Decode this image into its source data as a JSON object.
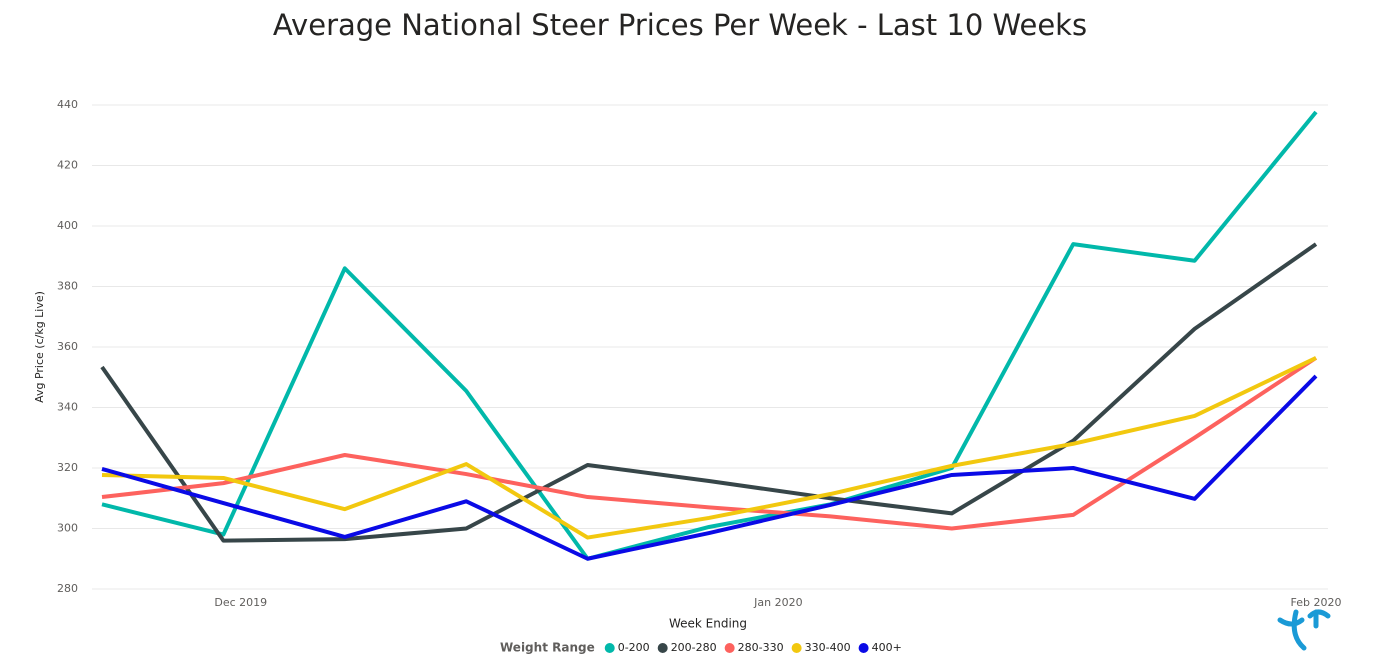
{
  "chart_data": {
    "type": "line",
    "title": "Average National Steer Prices Per Week - Last 10 Weeks",
    "x_label": "Week Ending",
    "y_label": "Avg Price (c/kg Live)",
    "legend_title": "Weight Range",
    "x": [
      "2019-11-23",
      "2019-11-30",
      "2019-12-07",
      "2019-12-14",
      "2019-12-21",
      "2019-12-28",
      "2020-01-04",
      "2020-01-11",
      "2020-01-18",
      "2020-01-25",
      "2020-02-01"
    ],
    "xlim": [
      "2019-11-23",
      "2020-02-01"
    ],
    "xticks": [
      {
        "value": "2019-12-01",
        "label": "Dec 2019"
      },
      {
        "value": "2020-01-01",
        "label": "Jan 2020"
      },
      {
        "value": "2020-02-01",
        "label": "Feb 2020"
      }
    ],
    "ylim": [
      280,
      440
    ],
    "yticks": [
      280,
      300,
      320,
      340,
      360,
      380,
      400,
      420,
      440
    ],
    "grid": true,
    "legend": "bottom",
    "series": [
      {
        "name": "0-200",
        "color": "#01b8aa",
        "values": [
          308,
          298,
          386,
          345.5,
          290,
          300.5,
          308,
          320,
          394,
          388.5,
          437.7
        ]
      },
      {
        "name": "200-280",
        "color": "#374649",
        "values": [
          353.4,
          296,
          296.5,
          300,
          321,
          315.7,
          310,
          305,
          329,
          366,
          394
        ]
      },
      {
        "name": "280-330",
        "color": "#fd625e",
        "values": [
          310.4,
          315,
          324.3,
          318,
          310.4,
          307,
          304,
          300,
          304.5,
          330,
          356.4
        ]
      },
      {
        "name": "330-400",
        "color": "#f2c80f",
        "values": [
          317.7,
          316.7,
          306.4,
          321.3,
          297,
          303.5,
          311.4,
          320.7,
          328,
          337.2,
          356.4
        ]
      },
      {
        "name": "400+",
        "color": "#0a0ae6",
        "values": [
          319.7,
          308.4,
          297.2,
          309,
          290,
          298.5,
          307.8,
          317.7,
          320,
          309.8,
          350.4
        ]
      }
    ]
  }
}
